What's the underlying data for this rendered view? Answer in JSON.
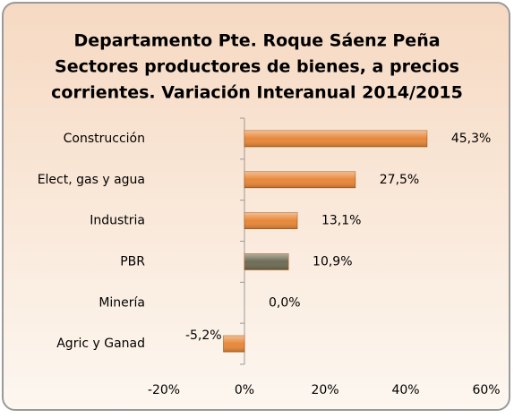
{
  "chart_data": {
    "type": "hbar",
    "title": [
      "Departamento Pte. Roque Sáenz Peña",
      "Sectores productores de bienes, a precios",
      "corrientes. Variación Interanual 2014/2015"
    ],
    "categories": [
      "Construcción",
      "Elect, gas y agua",
      "Industria",
      "PBR",
      "Minería",
      "Agric y Ganad"
    ],
    "values": [
      45.3,
      27.5,
      13.1,
      10.9,
      0,
      -5.2
    ],
    "value_labels": [
      "45,3%",
      "27,5%",
      "13,1%",
      "10,9%",
      "0,0%",
      "-5,2%"
    ],
    "colors": [
      "#e8883a",
      "#e8883a",
      "#e8883a",
      "#6e6c56",
      "#e8883a",
      "#e8883a"
    ],
    "xlim": [
      -20,
      60
    ],
    "xticks": [
      {
        "value": -20,
        "label": "-20%"
      },
      {
        "value": 0,
        "label": "0%"
      },
      {
        "value": 20,
        "label": "20%"
      },
      {
        "value": 40,
        "label": "40%"
      },
      {
        "value": 60,
        "label": "60%"
      }
    ],
    "grid": false
  }
}
